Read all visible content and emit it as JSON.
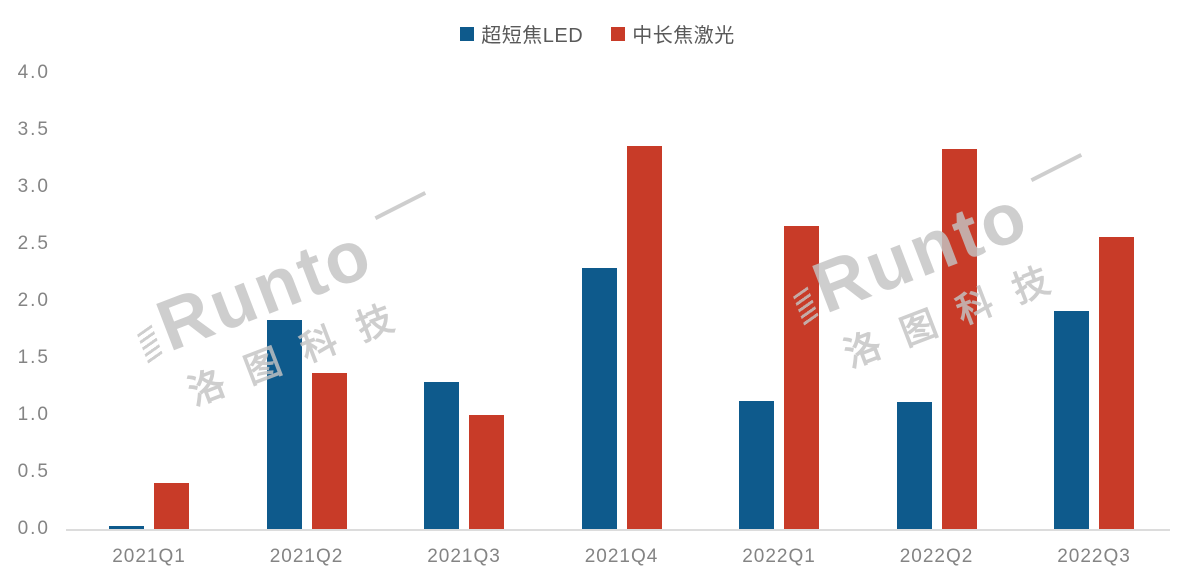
{
  "chart_data": {
    "type": "bar",
    "title": "",
    "xlabel": "",
    "ylabel": "",
    "categories": [
      "2021Q1",
      "2021Q2",
      "2021Q3",
      "2021Q4",
      "2022Q1",
      "2022Q2",
      "2022Q3"
    ],
    "series": [
      {
        "name": "超短焦LED",
        "color": "#0e5a8c",
        "values": [
          0.03,
          1.83,
          1.29,
          2.29,
          1.12,
          1.11,
          1.91
        ]
      },
      {
        "name": "中长焦激光",
        "color": "#c83b28",
        "values": [
          0.4,
          1.37,
          1.0,
          3.36,
          2.66,
          3.33,
          2.56
        ]
      }
    ],
    "ylim": [
      0,
      4.0
    ],
    "ytick_labels": [
      "0.0",
      "0.5",
      "1.0",
      "1.5",
      "2.0",
      "2.5",
      "3.0",
      "3.5",
      "4.0"
    ],
    "grid": false,
    "legend_position": "top-center"
  },
  "watermark": {
    "latin": "Runto",
    "cn": "洛图科技"
  },
  "colors": {
    "background": "#ffffff",
    "axis_line": "#dcdcdc",
    "tick_label": "#848484",
    "legend_text": "#595959",
    "watermark": "#c4c4c4"
  }
}
